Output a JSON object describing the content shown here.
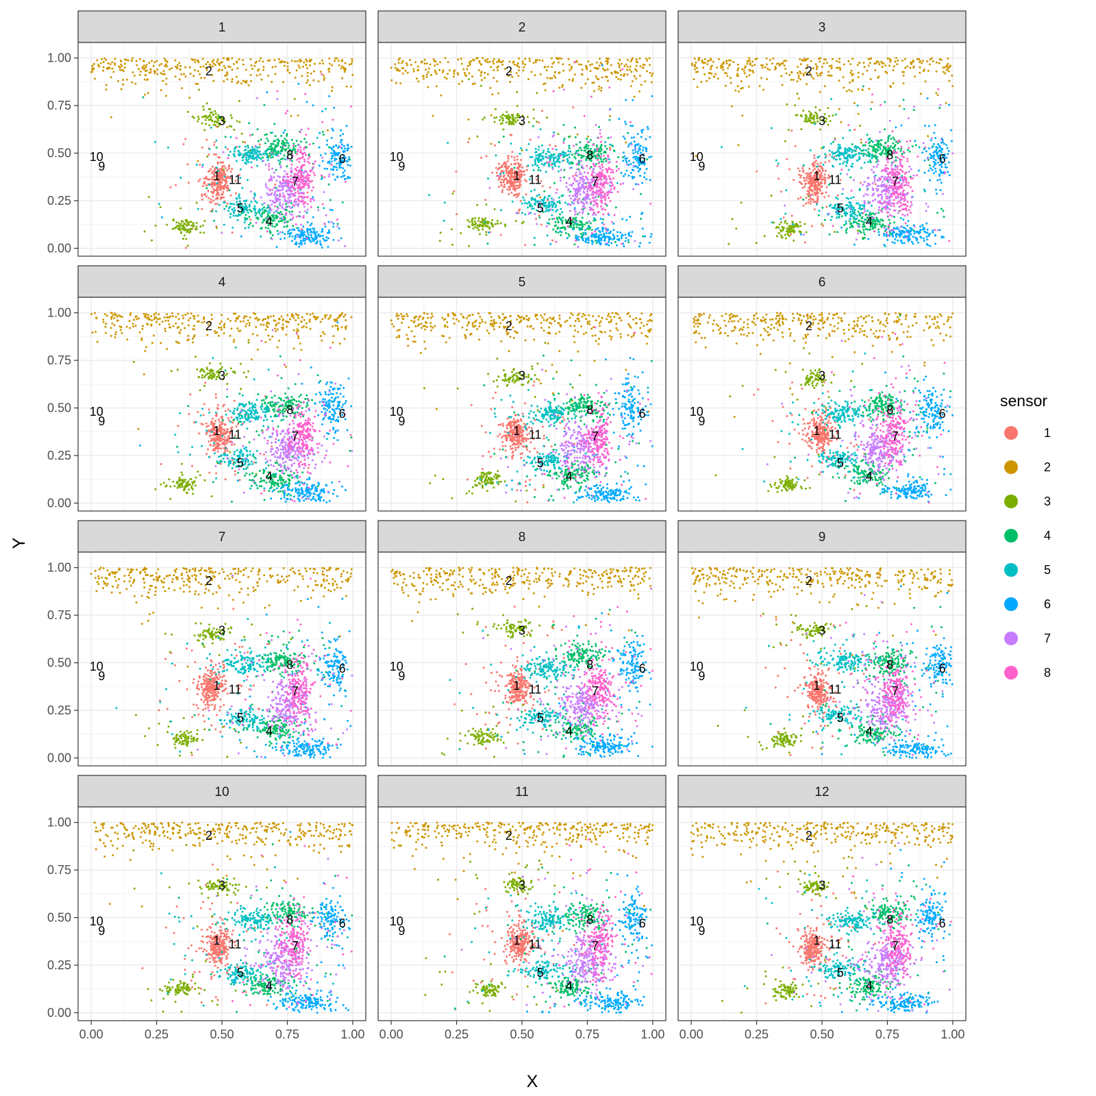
{
  "chart_data": {
    "type": "scatter",
    "facet_by": "panel",
    "panels": [
      "1",
      "2",
      "3",
      "4",
      "5",
      "6",
      "7",
      "8",
      "9",
      "10",
      "11",
      "12"
    ],
    "xlabel": "X",
    "ylabel": "Y",
    "xlim": [
      0,
      1
    ],
    "ylim": [
      0,
      1.04
    ],
    "x_ticks": [
      "0.00",
      "0.25",
      "0.50",
      "0.75",
      "1.00"
    ],
    "y_ticks": [
      "0.00",
      "0.25",
      "0.50",
      "0.75",
      "1.00"
    ],
    "grid": true,
    "legend": {
      "title": "sensor",
      "position": "right",
      "entries": [
        "1",
        "2",
        "3",
        "4",
        "5",
        "6",
        "7",
        "8"
      ]
    },
    "colors": [
      "#F8766D",
      "#CD9600",
      "#7CAE00",
      "#00BE67",
      "#00BFC4",
      "#00A9FF",
      "#C77CFF",
      "#FF61CC"
    ],
    "sensor_positions": [
      {
        "label": "1",
        "x": 0.48,
        "y": 0.38
      },
      {
        "label": "2",
        "x": 0.45,
        "y": 0.93
      },
      {
        "label": "3",
        "x": 0.5,
        "y": 0.67
      },
      {
        "label": "4",
        "x": 0.68,
        "y": 0.14
      },
      {
        "label": "5",
        "x": 0.57,
        "y": 0.21
      },
      {
        "label": "6",
        "x": 0.96,
        "y": 0.47
      },
      {
        "label": "7",
        "x": 0.78,
        "y": 0.35
      },
      {
        "label": "8",
        "x": 0.76,
        "y": 0.49
      },
      {
        "label": "9",
        "x": 0.04,
        "y": 0.43
      },
      {
        "label": "10",
        "x": 0.02,
        "y": 0.48
      },
      {
        "label": "11",
        "x": 0.55,
        "y": 0.36
      }
    ],
    "clusters": [
      {
        "sensor": "1",
        "cx": 0.48,
        "cy": 0.36,
        "sx": 0.022,
        "sy": 0.045,
        "n": 220
      },
      {
        "sensor": "2",
        "cx": 0.5,
        "cy": 0.91,
        "sx": 0.3,
        "sy": 0.05,
        "n": 320
      },
      {
        "sensor": "3",
        "cx": 0.48,
        "cy": 0.67,
        "sx": 0.03,
        "sy": 0.02,
        "n": 60
      },
      {
        "sensor": "3",
        "cx": 0.36,
        "cy": 0.11,
        "sx": 0.025,
        "sy": 0.018,
        "n": 70
      },
      {
        "sensor": "4",
        "cx": 0.69,
        "cy": 0.14,
        "sx": 0.04,
        "sy": 0.03,
        "n": 110
      },
      {
        "sensor": "4",
        "cx": 0.74,
        "cy": 0.52,
        "sx": 0.04,
        "sy": 0.03,
        "n": 120
      },
      {
        "sensor": "5",
        "cx": 0.6,
        "cy": 0.49,
        "sx": 0.04,
        "sy": 0.025,
        "n": 110
      },
      {
        "sensor": "5",
        "cx": 0.58,
        "cy": 0.22,
        "sx": 0.04,
        "sy": 0.025,
        "n": 90
      },
      {
        "sensor": "6",
        "cx": 0.93,
        "cy": 0.49,
        "sx": 0.025,
        "sy": 0.06,
        "n": 110
      },
      {
        "sensor": "6",
        "cx": 0.83,
        "cy": 0.06,
        "sx": 0.05,
        "sy": 0.025,
        "n": 130
      },
      {
        "sensor": "7",
        "cx": 0.74,
        "cy": 0.29,
        "sx": 0.04,
        "sy": 0.06,
        "n": 200
      },
      {
        "sensor": "8",
        "cx": 0.79,
        "cy": 0.35,
        "sx": 0.025,
        "sy": 0.08,
        "n": 170
      }
    ]
  }
}
